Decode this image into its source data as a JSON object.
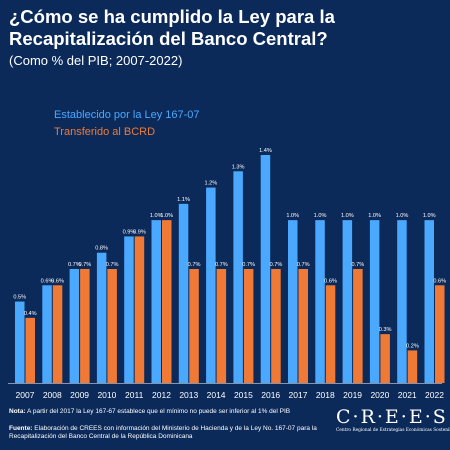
{
  "header": {
    "title": "¿Cómo se ha cumplido la Ley para la Recapitalización del Banco Central?",
    "subtitle": "(Como % del PIB; 2007-2022)"
  },
  "colors": {
    "background": "#0b2a5a",
    "established": "#4aa8ff",
    "transferred": "#f07a35"
  },
  "chart_data": {
    "type": "bar",
    "categories": [
      "2007",
      "2008",
      "2009",
      "2010",
      "2011",
      "2012",
      "2013",
      "2014",
      "2015",
      "2016",
      "2017",
      "2018",
      "2019",
      "2020",
      "2021",
      "2022"
    ],
    "series": [
      {
        "name": "Establecido por la Ley 167-07",
        "values": [
          0.5,
          0.6,
          0.7,
          0.8,
          0.9,
          1.0,
          1.1,
          1.2,
          1.3,
          1.4,
          1.0,
          1.0,
          1.0,
          1.0,
          1.0,
          1.0
        ],
        "labels": [
          "0.5%",
          "0.6%",
          "0.7%",
          "0.8%",
          "0.9%",
          "1.0%",
          "1.1%",
          "1.2%",
          "1.3%",
          "1.4%",
          "1.0%",
          "1.0%",
          "1.0%",
          "1.0%",
          "1.0%",
          "1.0%"
        ],
        "color": "#4aa8ff"
      },
      {
        "name": "Transferido al BCRD",
        "values": [
          0.4,
          0.6,
          0.7,
          0.7,
          0.9,
          1.0,
          0.7,
          0.7,
          0.7,
          0.7,
          0.7,
          0.6,
          0.7,
          0.3,
          0.2,
          0.6
        ],
        "labels": [
          "0.4%",
          "0.6%",
          "0.7%",
          "0.7%",
          "0.9%",
          "1.0%",
          "0.7%",
          "0.7%",
          "0.7%",
          "0.7%",
          "0.7%",
          "0.6%",
          "0.7%",
          "0.3%",
          "0.2%",
          "0.6%"
        ],
        "color": "#f07a35"
      }
    ],
    "ylim": [
      0,
      1.4
    ],
    "grid": false,
    "legend": "top-left"
  },
  "footer": {
    "note_label": "Nota:",
    "note_text": " A partir del 2017 la Ley 167-67 establece que el mínimo no puede ser inferior al 1% del PIB",
    "source_label": "Fuente:",
    "source_text": " Elaboración de CREES con información del Ministerio de Hacienda y de la Ley No. 167-07 para la Recapitalización del Banco Central de la República Dominicana"
  },
  "logo": {
    "word": "C·R·E·E·S",
    "tagline": "Centro Regional de Estrategias Económicas Sostenibles"
  }
}
